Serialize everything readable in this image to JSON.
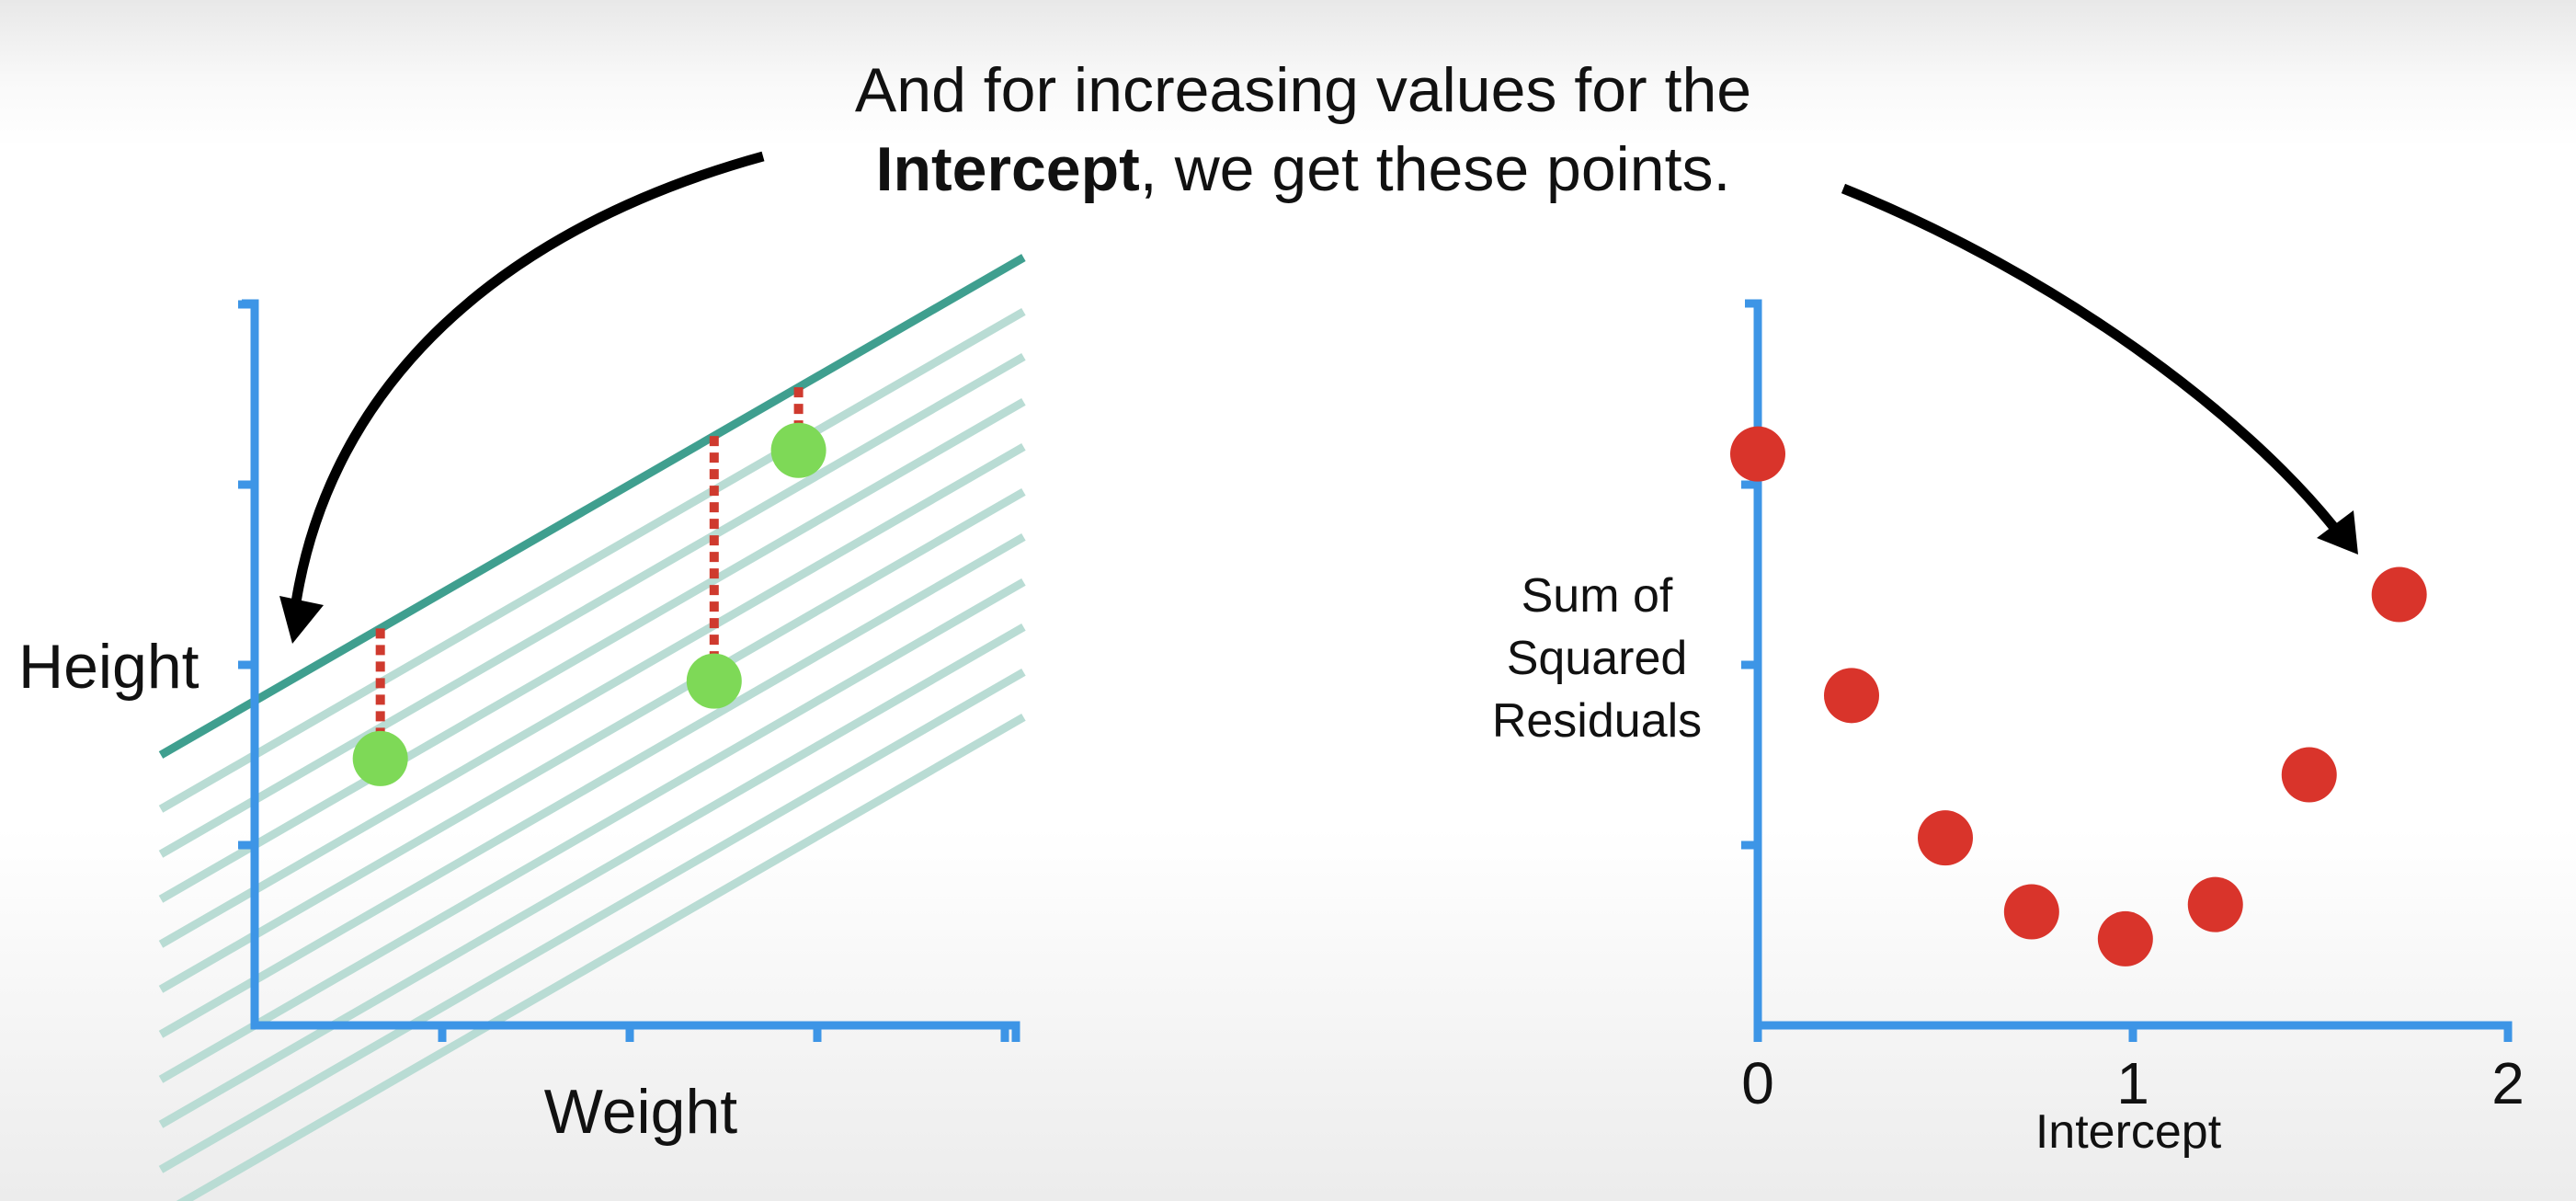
{
  "caption": {
    "line1": "And for increasing values for the",
    "bold": "Intercept",
    "rest": ", we get these points."
  },
  "colors": {
    "axis": "#3d95e6",
    "fit_line": "#3f9f8f",
    "faded_lines": "#b9dcd4",
    "green_points": "#7ed957",
    "residuals": "#cf3a2e",
    "ssr_points": "#d9342b",
    "arrows": "#000000"
  },
  "chart_data": [
    {
      "type": "scatter",
      "xlabel": "Weight",
      "ylabel": "Height",
      "x_ticks": 4,
      "y_ticks": 4,
      "points": [
        {
          "x": 0.67,
          "y": 1.48
        },
        {
          "x": 2.45,
          "y": 1.91
        },
        {
          "x": 2.9,
          "y": 3.19
        }
      ],
      "fitted_line": {
        "slope": 0.6,
        "intercept": 1.8
      },
      "faded_lines_intercepts": [
        1.5,
        1.25,
        1.0,
        0.75,
        0.5,
        0.25,
        0.0,
        -0.25,
        -0.5,
        -0.75
      ]
    },
    {
      "type": "scatter",
      "xlabel": "Intercept",
      "ylabel": "Sum of Squared Residuals",
      "ylabel_lines": [
        "Sum of",
        "Squared",
        "Residuals"
      ],
      "x_ticks": [
        "0",
        "1",
        "2"
      ],
      "xlim": [
        0,
        2
      ],
      "ylim": [
        0,
        4
      ],
      "points": [
        {
          "x": 0.0,
          "y": 3.17
        },
        {
          "x": 0.25,
          "y": 1.83
        },
        {
          "x": 0.5,
          "y": 1.04
        },
        {
          "x": 0.73,
          "y": 0.63
        },
        {
          "x": 0.98,
          "y": 0.48
        },
        {
          "x": 1.22,
          "y": 0.67
        },
        {
          "x": 1.47,
          "y": 1.39
        },
        {
          "x": 1.71,
          "y": 2.39
        }
      ]
    }
  ]
}
